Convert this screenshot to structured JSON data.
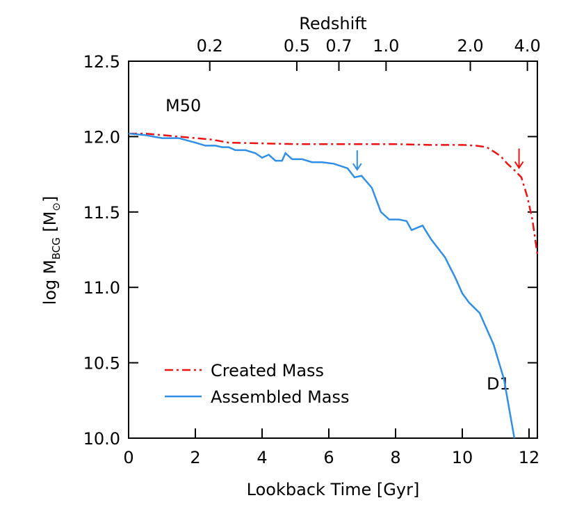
{
  "chart_data": {
    "type": "line",
    "title_top_axis": "Redshift",
    "xlabel": "Lookback Time [Gyr]",
    "ylabel": [
      "log M",
      "BCG",
      " [M",
      "⊙",
      "]"
    ],
    "annotations": [
      "M50",
      "D1"
    ],
    "xlim": [
      0,
      12.25
    ],
    "ylim": [
      10,
      12.5
    ],
    "xticks": [
      0,
      2,
      4,
      6,
      8,
      10,
      12
    ],
    "yticks": [
      {
        "value": 10,
        "label": "10.0"
      },
      {
        "value": 10.5,
        "label": "10.5"
      },
      {
        "value": 11,
        "label": "11.0"
      },
      {
        "value": 11.5,
        "label": "11.5"
      },
      {
        "value": 12,
        "label": "12.0"
      },
      {
        "value": 12.5,
        "label": "12.5"
      }
    ],
    "x2ticks": [
      {
        "value": 0.2,
        "label": "0.2"
      },
      {
        "value": 0.5,
        "label": "0.5"
      },
      {
        "value": 0.7,
        "label": "0.7"
      },
      {
        "value": 1,
        "label": "1.0"
      },
      {
        "value": 2,
        "label": "2.0"
      },
      {
        "value": 4,
        "label": "4.0"
      }
    ],
    "legend": "lower left",
    "series": [
      {
        "name": "Created Mass",
        "color": "#ee1111",
        "dash": "dashdot",
        "marker_x": 11.7,
        "x": [
          0,
          0.5,
          1,
          1.5,
          2,
          2.5,
          3,
          4,
          5,
          6,
          7,
          8,
          9,
          10,
          10.4,
          10.73,
          10.95,
          11.15,
          11.35,
          11.55,
          11.77,
          11.95,
          12.1,
          12.25
        ],
        "values": [
          12.02,
          12.02,
          12.01,
          12.0,
          11.99,
          11.98,
          11.96,
          11.955,
          11.95,
          11.95,
          11.95,
          11.95,
          11.945,
          11.945,
          11.94,
          11.93,
          11.9,
          11.87,
          11.82,
          11.78,
          11.73,
          11.6,
          11.45,
          11.22
        ]
      },
      {
        "name": "Assembled Mass",
        "color": "#2f8fe6",
        "dash": "solid",
        "marker_x": 6.85,
        "x": [
          0,
          0.5,
          1,
          1.5,
          2,
          2.3,
          2.6,
          2.8,
          3,
          3.2,
          3.5,
          3.8,
          4,
          4.2,
          4.4,
          4.6,
          4.7,
          4.9,
          5.2,
          5.5,
          5.8,
          6.15,
          6.56,
          6.77,
          6.98,
          7.29,
          7.56,
          7.81,
          8.1,
          8.33,
          8.48,
          8.81,
          9.06,
          9.48,
          9.8,
          10,
          10.2,
          10.52,
          10.94,
          11.25,
          11.56
        ],
        "values": [
          12.02,
          12.01,
          11.99,
          11.99,
          11.96,
          11.94,
          11.94,
          11.93,
          11.93,
          11.91,
          11.91,
          11.89,
          11.86,
          11.88,
          11.84,
          11.84,
          11.89,
          11.85,
          11.85,
          11.83,
          11.83,
          11.82,
          11.79,
          11.73,
          11.74,
          11.66,
          11.5,
          11.45,
          11.45,
          11.44,
          11.38,
          11.41,
          11.32,
          11.2,
          11.06,
          10.96,
          10.9,
          10.83,
          10.62,
          10.39,
          10.0
        ]
      }
    ]
  }
}
